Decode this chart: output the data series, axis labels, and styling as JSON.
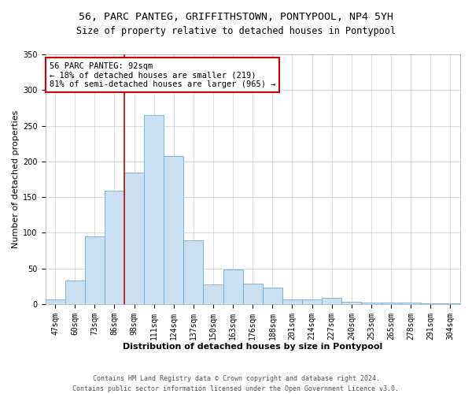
{
  "title": "56, PARC PANTEG, GRIFFITHSTOWN, PONTYPOOL, NP4 5YH",
  "subtitle": "Size of property relative to detached houses in Pontypool",
  "xlabel": "Distribution of detached houses by size in Pontypool",
  "ylabel": "Number of detached properties",
  "bar_labels": [
    "47sqm",
    "60sqm",
    "73sqm",
    "86sqm",
    "98sqm",
    "111sqm",
    "124sqm",
    "137sqm",
    "150sqm",
    "163sqm",
    "176sqm",
    "188sqm",
    "201sqm",
    "214sqm",
    "227sqm",
    "240sqm",
    "253sqm",
    "265sqm",
    "278sqm",
    "291sqm",
    "304sqm"
  ],
  "bar_values": [
    6,
    33,
    95,
    159,
    184,
    265,
    208,
    89,
    28,
    48,
    29,
    23,
    6,
    7,
    9,
    3,
    2,
    2,
    2,
    1,
    1
  ],
  "bar_color": "#c9dff2",
  "bar_edge_color": "#6aaed6",
  "vline_x": 3.5,
  "vline_color": "#cc0000",
  "ylim": [
    0,
    350
  ],
  "annotation_title": "56 PARC PANTEG: 92sqm",
  "annotation_line1": "← 18% of detached houses are smaller (219)",
  "annotation_line2": "81% of semi-detached houses are larger (965) →",
  "annotation_box_color": "#ffffff",
  "annotation_box_edge": "#cc0000",
  "footer1": "Contains HM Land Registry data © Crown copyright and database right 2024.",
  "footer2": "Contains public sector information licensed under the Open Government Licence v3.0.",
  "title_fontsize": 9.5,
  "subtitle_fontsize": 8.5,
  "xlabel_fontsize": 8,
  "ylabel_fontsize": 8,
  "tick_fontsize": 7,
  "annotation_fontsize": 7.5,
  "footer_fontsize": 6
}
